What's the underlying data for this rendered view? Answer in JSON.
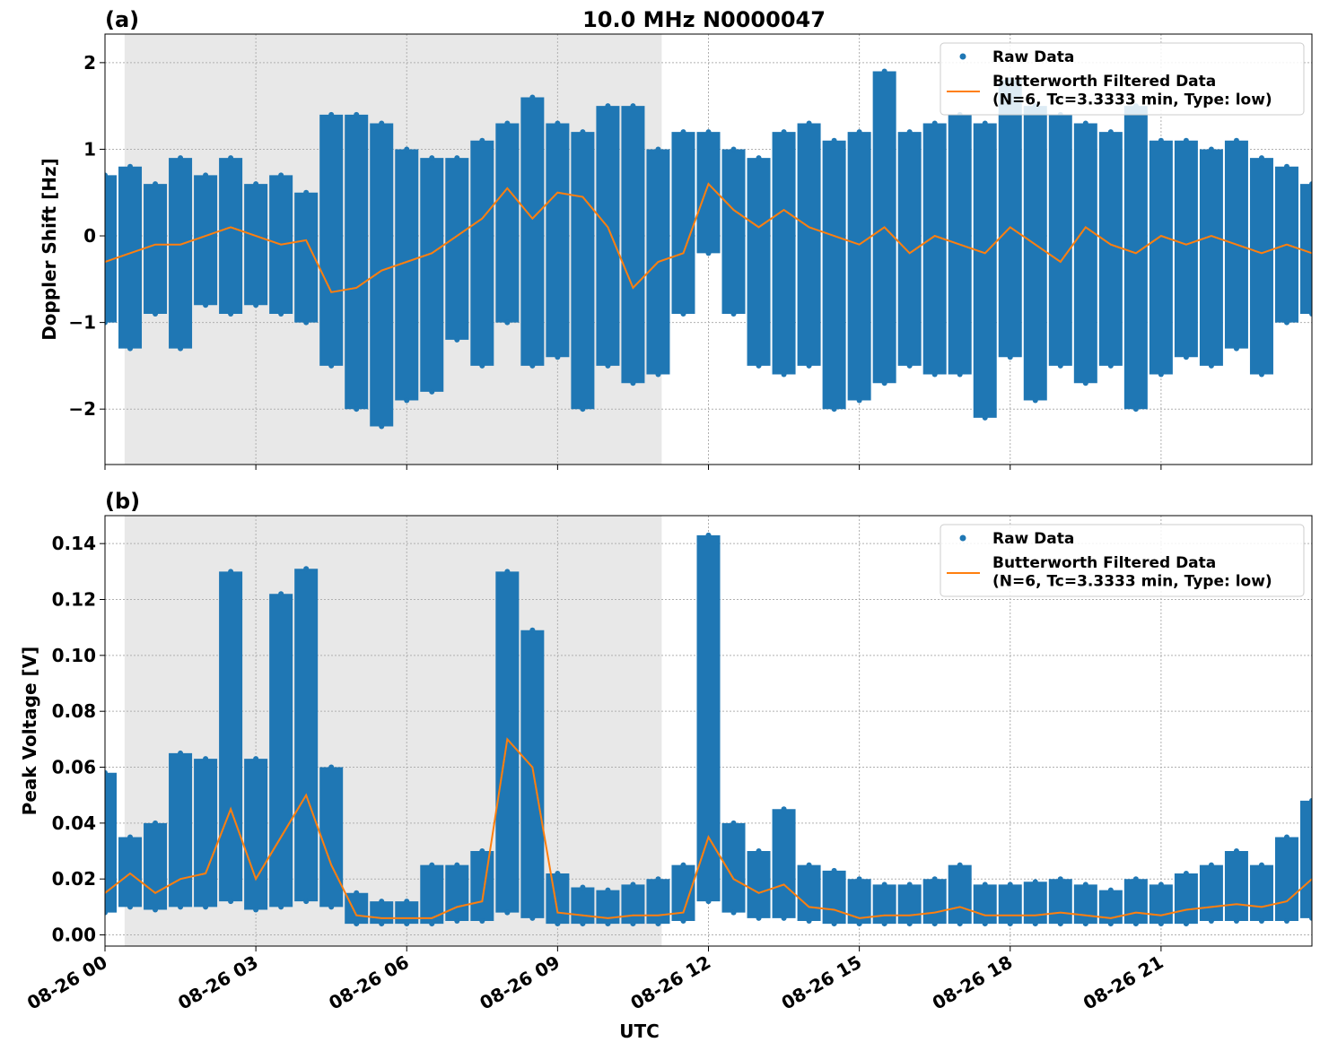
{
  "chart_data": [
    {
      "type": "scatter-line",
      "panel_label": "(a)",
      "title": "10.0 MHz N0000047",
      "ylabel": "Doppler Shift [Hz]",
      "xlim": [
        0,
        24
      ],
      "xticks": [
        0,
        3,
        6,
        9,
        12,
        15,
        18,
        21
      ],
      "ylim": [
        -2.64,
        2.33
      ],
      "yticks": [
        {
          "value": -2,
          "label": "−2"
        },
        {
          "value": -1,
          "label": "−1"
        },
        0,
        1,
        2
      ],
      "grid": true,
      "legend": "upper right",
      "shaded_span": [
        0.39,
        11.07
      ],
      "shade_color": "#e8e8e8",
      "x": [
        0,
        0.5,
        1,
        1.5,
        2,
        2.5,
        3,
        3.5,
        4,
        4.5,
        5,
        5.5,
        6,
        6.5,
        7,
        7.5,
        8,
        8.5,
        9,
        9.5,
        10,
        10.5,
        11,
        11.5,
        12,
        12.5,
        13,
        13.5,
        14,
        14.5,
        15,
        15.5,
        16,
        16.5,
        17,
        17.5,
        18,
        18.5,
        19,
        19.5,
        20,
        20.5,
        21,
        21.5,
        22,
        22.5,
        23,
        23.5,
        24
      ],
      "series": [
        {
          "name": "Raw Data",
          "color": "#1f77b4",
          "high": [
            0.7,
            0.8,
            0.6,
            0.9,
            0.7,
            0.9,
            0.6,
            0.7,
            0.5,
            1.4,
            1.4,
            1.3,
            1.0,
            0.9,
            0.9,
            1.1,
            1.3,
            1.6,
            1.3,
            1.2,
            1.5,
            1.5,
            1.0,
            1.2,
            1.2,
            1.0,
            0.9,
            1.2,
            1.3,
            1.1,
            1.2,
            1.9,
            1.2,
            1.3,
            1.4,
            1.3,
            1.8,
            1.5,
            1.4,
            1.3,
            1.2,
            1.5,
            1.1,
            1.1,
            1.0,
            1.1,
            0.9,
            0.8,
            0.6
          ],
          "low": [
            -1.0,
            -1.3,
            -0.9,
            -1.3,
            -0.8,
            -0.9,
            -0.8,
            -0.9,
            -1.0,
            -1.5,
            -2.0,
            -2.2,
            -1.9,
            -1.8,
            -1.2,
            -1.5,
            -1.0,
            -1.5,
            -1.4,
            -2.0,
            -1.5,
            -1.7,
            -1.6,
            -0.9,
            -0.2,
            -0.9,
            -1.5,
            -1.6,
            -1.5,
            -2.0,
            -1.9,
            -1.7,
            -1.5,
            -1.6,
            -1.6,
            -2.1,
            -1.4,
            -1.9,
            -1.5,
            -1.7,
            -1.5,
            -2.0,
            -1.6,
            -1.4,
            -1.5,
            -1.3,
            -1.6,
            -1.0,
            -0.9
          ]
        },
        {
          "name": "Butterworth Filtered Data\n(N=6, Tc=3.3333 min, Type: low)",
          "color": "#ff7f0e",
          "values": [
            -0.3,
            -0.2,
            -0.1,
            -0.1,
            0.0,
            0.1,
            0.0,
            -0.1,
            -0.05,
            -0.65,
            -0.6,
            -0.4,
            -0.3,
            -0.2,
            0.0,
            0.2,
            0.55,
            0.2,
            0.5,
            0.45,
            0.1,
            -0.6,
            -0.3,
            -0.2,
            0.6,
            0.3,
            0.1,
            0.3,
            0.1,
            0.0,
            -0.1,
            0.1,
            -0.2,
            0.0,
            -0.1,
            -0.2,
            0.1,
            -0.1,
            -0.3,
            0.1,
            -0.1,
            -0.2,
            0.0,
            -0.1,
            0.0,
            -0.1,
            -0.2,
            -0.1,
            -0.2
          ]
        }
      ]
    },
    {
      "type": "scatter-line",
      "panel_label": "(b)",
      "ylabel": "Peak Voltage [V]",
      "xlabel": "UTC",
      "xlim": [
        0,
        24
      ],
      "xticks": [
        {
          "value": 0,
          "label": "08-26 00"
        },
        {
          "value": 3,
          "label": "08-26 03"
        },
        {
          "value": 6,
          "label": "08-26 06"
        },
        {
          "value": 9,
          "label": "08-26 09"
        },
        {
          "value": 12,
          "label": "08-26 12"
        },
        {
          "value": 15,
          "label": "08-26 15"
        },
        {
          "value": 18,
          "label": "08-26 18"
        },
        {
          "value": 21,
          "label": "08-26 21"
        }
      ],
      "ylim": [
        -0.004,
        0.15
      ],
      "yticks": [
        {
          "value": 0,
          "label": "0.00"
        },
        {
          "value": 0.02,
          "label": "0.02"
        },
        {
          "value": 0.04,
          "label": "0.04"
        },
        {
          "value": 0.06,
          "label": "0.06"
        },
        {
          "value": 0.08,
          "label": "0.08"
        },
        {
          "value": 0.1,
          "label": "0.10"
        },
        {
          "value": 0.12,
          "label": "0.12"
        },
        {
          "value": 0.14,
          "label": "0.14"
        }
      ],
      "grid": true,
      "legend": "upper right",
      "shaded_span": [
        0.39,
        11.07
      ],
      "shade_color": "#e8e8e8",
      "x": [
        0,
        0.5,
        1,
        1.5,
        2,
        2.5,
        3,
        3.5,
        4,
        4.5,
        5,
        5.5,
        6,
        6.5,
        7,
        7.5,
        8,
        8.5,
        9,
        9.5,
        10,
        10.5,
        11,
        11.5,
        12,
        12.5,
        13,
        13.5,
        14,
        14.5,
        15,
        15.5,
        16,
        16.5,
        17,
        17.5,
        18,
        18.5,
        19,
        19.5,
        20,
        20.5,
        21,
        21.5,
        22,
        22.5,
        23,
        23.5,
        24
      ],
      "series": [
        {
          "name": "Raw Data",
          "color": "#1f77b4",
          "high": [
            0.058,
            0.035,
            0.04,
            0.065,
            0.063,
            0.13,
            0.063,
            0.122,
            0.131,
            0.06,
            0.015,
            0.012,
            0.012,
            0.025,
            0.025,
            0.03,
            0.13,
            0.109,
            0.022,
            0.017,
            0.016,
            0.018,
            0.02,
            0.025,
            0.143,
            0.04,
            0.03,
            0.045,
            0.025,
            0.023,
            0.02,
            0.018,
            0.018,
            0.02,
            0.025,
            0.018,
            0.018,
            0.019,
            0.02,
            0.018,
            0.016,
            0.02,
            0.018,
            0.022,
            0.025,
            0.03,
            0.025,
            0.035,
            0.048
          ],
          "low": [
            0.008,
            0.01,
            0.009,
            0.01,
            0.01,
            0.012,
            0.009,
            0.01,
            0.012,
            0.01,
            0.004,
            0.004,
            0.004,
            0.004,
            0.005,
            0.005,
            0.008,
            0.006,
            0.004,
            0.004,
            0.004,
            0.004,
            0.004,
            0.005,
            0.012,
            0.008,
            0.006,
            0.006,
            0.005,
            0.004,
            0.004,
            0.004,
            0.004,
            0.004,
            0.004,
            0.004,
            0.004,
            0.004,
            0.004,
            0.004,
            0.004,
            0.004,
            0.004,
            0.004,
            0.005,
            0.005,
            0.005,
            0.005,
            0.006
          ]
        },
        {
          "name": "Butterworth Filtered Data\n(N=6, Tc=3.3333 min, Type: low)",
          "color": "#ff7f0e",
          "values": [
            0.015,
            0.022,
            0.015,
            0.02,
            0.022,
            0.045,
            0.02,
            0.035,
            0.05,
            0.025,
            0.007,
            0.006,
            0.006,
            0.006,
            0.01,
            0.012,
            0.07,
            0.06,
            0.008,
            0.007,
            0.006,
            0.007,
            0.007,
            0.008,
            0.035,
            0.02,
            0.015,
            0.018,
            0.01,
            0.009,
            0.006,
            0.007,
            0.007,
            0.008,
            0.01,
            0.007,
            0.007,
            0.007,
            0.008,
            0.007,
            0.006,
            0.008,
            0.007,
            0.009,
            0.01,
            0.011,
            0.01,
            0.012,
            0.02
          ]
        }
      ]
    }
  ]
}
